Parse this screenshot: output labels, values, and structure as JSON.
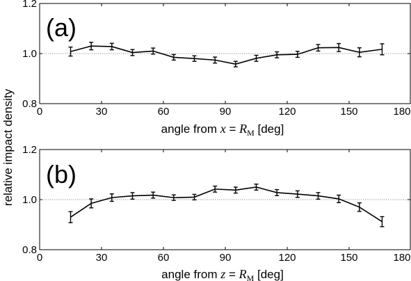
{
  "figure": {
    "ylabel": "relative impact density"
  },
  "chart_data": [
    {
      "type": "line",
      "panel_label": "(a)",
      "xlabel": {
        "prefix": "angle from ",
        "var": "x",
        "eq": " = ",
        "rvar": "R",
        "rsub": "M",
        "suffix": " [deg]"
      },
      "xlim": [
        0,
        180
      ],
      "ylim": [
        0.8,
        1.2
      ],
      "xticks": [
        0,
        30,
        60,
        90,
        120,
        150,
        180
      ],
      "yticks": [
        0.8,
        1.0,
        1.2
      ],
      "ytick_labels": [
        "0.8",
        "1.0",
        "1.2"
      ],
      "reference_y": 1.0,
      "series": [
        {
          "x": [
            15,
            25,
            35,
            45,
            55,
            65,
            75,
            85,
            95,
            105,
            115,
            125,
            135,
            145,
            155,
            166
          ],
          "y": [
            1.008,
            1.03,
            1.028,
            1.004,
            1.01,
            0.985,
            0.98,
            0.974,
            0.958,
            0.981,
            0.995,
            0.997,
            1.023,
            1.024,
            1.005,
            1.017
          ],
          "err": [
            0.018,
            0.015,
            0.013,
            0.012,
            0.012,
            0.011,
            0.011,
            0.012,
            0.011,
            0.012,
            0.012,
            0.012,
            0.013,
            0.016,
            0.018,
            0.022
          ]
        }
      ]
    },
    {
      "type": "line",
      "panel_label": "(b)",
      "xlabel": {
        "prefix": "angle from ",
        "var": "z",
        "eq": " = ",
        "rvar": "R",
        "rsub": "M",
        "suffix": "  [deg]"
      },
      "xlim": [
        0,
        180
      ],
      "ylim": [
        0.8,
        1.2
      ],
      "xticks": [
        0,
        30,
        60,
        90,
        120,
        150,
        180
      ],
      "yticks": [
        0.8,
        1.0,
        1.2
      ],
      "ytick_labels": [
        "0.8",
        "1.0",
        "1.2"
      ],
      "reference_y": 1.0,
      "series": [
        {
          "x": [
            15,
            25,
            35,
            45,
            55,
            65,
            75,
            85,
            95,
            105,
            115,
            125,
            135,
            145,
            155,
            166
          ],
          "y": [
            0.93,
            0.985,
            1.008,
            1.015,
            1.018,
            1.008,
            1.01,
            1.042,
            1.038,
            1.05,
            1.028,
            1.022,
            1.015,
            1.003,
            0.97,
            0.912
          ],
          "err": [
            0.022,
            0.018,
            0.015,
            0.013,
            0.012,
            0.011,
            0.011,
            0.012,
            0.012,
            0.012,
            0.012,
            0.013,
            0.013,
            0.015,
            0.017,
            0.02
          ]
        }
      ]
    }
  ]
}
